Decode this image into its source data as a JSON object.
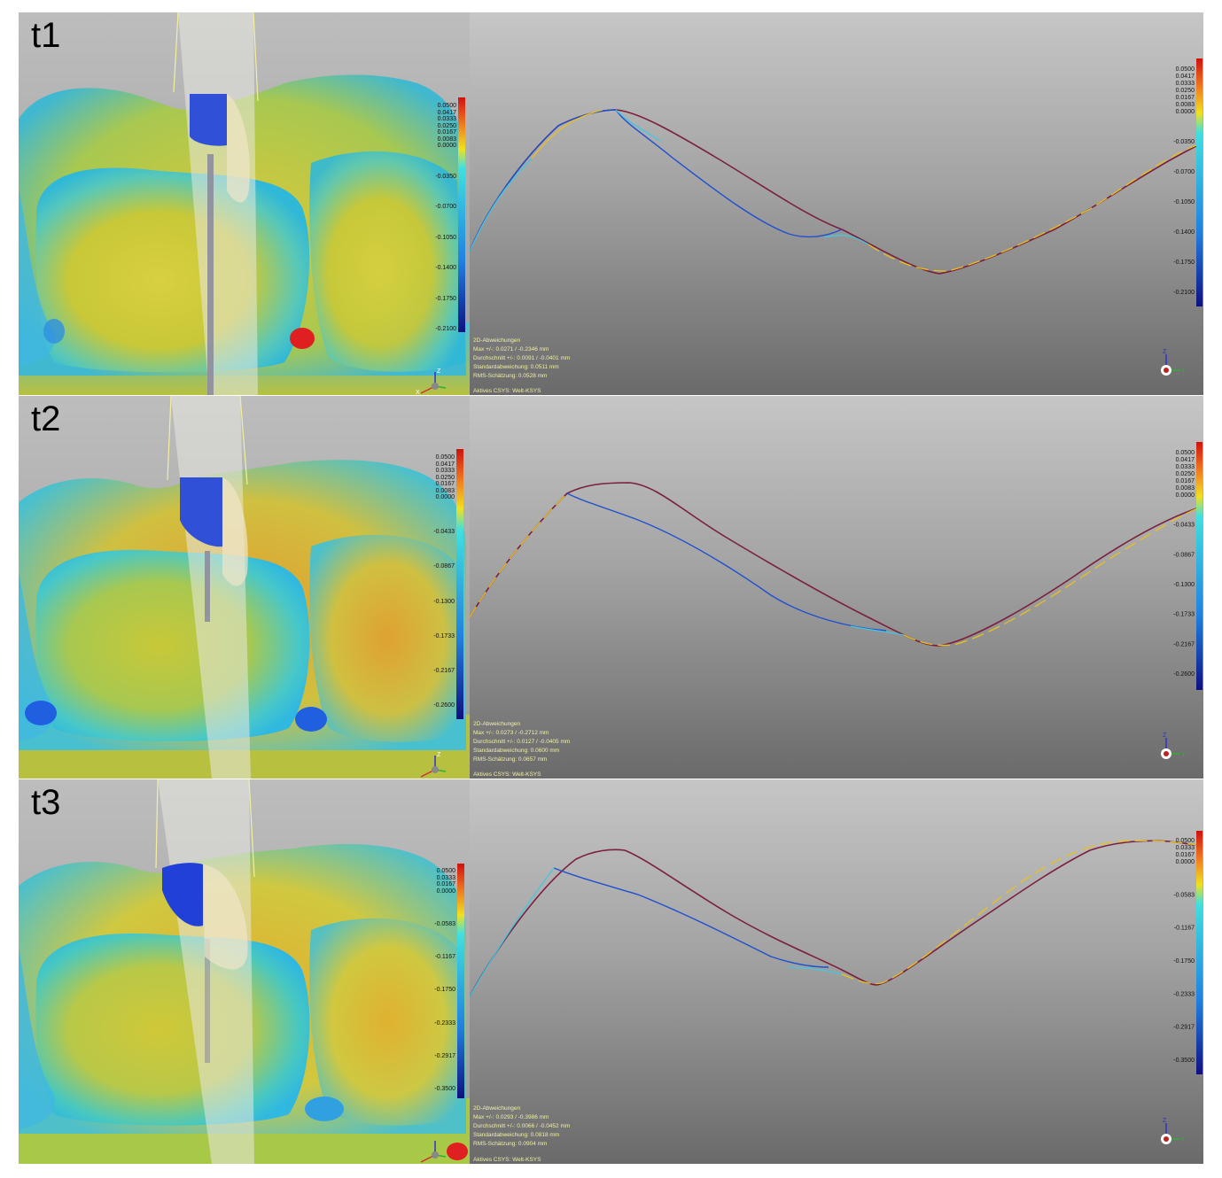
{
  "panels": [
    {
      "id": "t1",
      "label": "t1",
      "scale_left": [
        "0.0500",
        "0.0417",
        "0.0333",
        "0.0250",
        "0.0167",
        "0.0083",
        "0.0000",
        "-0.0350",
        "-0.0700",
        "-0.1050",
        "-0.1400",
        "-0.1750",
        "-0.2100"
      ],
      "scale_right": [
        "0.0500",
        "0.0417",
        "0.0333",
        "0.0250",
        "0.0167",
        "0.0083",
        "0.0000",
        "-0.0350",
        "-0.0700",
        "-0.1050",
        "-0.1400",
        "-0.1750",
        "-0.2100"
      ],
      "info": {
        "title": "2D-Abweichungen",
        "max": "Max +/-: 0.0271 / -0.2346 mm",
        "mean": "Durchschnitt +/-: 0.0091 / -0.0401 mm",
        "std": "Standardabweichung: 0.0511 mm",
        "rms": "RMS-Schätzung: 0.0528 mm"
      },
      "csys": "Aktives CSYS: Welt-KSYS"
    },
    {
      "id": "t2",
      "label": "t2",
      "scale_left": [
        "0.0500",
        "0.0417",
        "0.0333",
        "0.0250",
        "0.0167",
        "0.0083",
        "0.0000",
        "-0.0433",
        "-0.0867",
        "-0.1300",
        "-0.1733",
        "-0.2167",
        "-0.2600"
      ],
      "scale_right": [
        "0.0500",
        "0.0417",
        "0.0333",
        "0.0250",
        "0.0167",
        "0.0083",
        "0.0000",
        "-0.0433",
        "-0.0867",
        "-0.1300",
        "-0.1733",
        "-0.2167",
        "-0.2600"
      ],
      "info": {
        "title": "2D-Abweichungen",
        "max": "Max +/-: 0.0273 / -0.2712 mm",
        "mean": "Durchschnitt +/-: 0.0127 / -0.0405 mm",
        "std": "Standardabweichung: 0.0600 mm",
        "rms": "RMS-Schätzung: 0.0657 mm"
      },
      "csys": "Aktives CSYS: Welt-KSYS"
    },
    {
      "id": "t3",
      "label": "t3",
      "scale_left": [
        "0.0500",
        "0.0333",
        "0.0167",
        "0.0000",
        "-0.0583",
        "-0.1167",
        "-0.1750",
        "-0.2333",
        "-0.2917",
        "-0.3500"
      ],
      "scale_right": [
        "0.0500",
        "0.0333",
        "0.0167",
        "0.0000",
        "-0.0583",
        "-0.1167",
        "-0.1750",
        "-0.2333",
        "-0.2917",
        "-0.3500"
      ],
      "info": {
        "title": "2D-Abweichungen",
        "max": "Max +/-: 0.0293 / -0.3986 mm",
        "mean": "Durchschnitt +/-: 0.0066 / -0.0452 mm",
        "std": "Standardabweichung: 0.0818 mm",
        "rms": "RMS-Schätzung: 0.0904 mm"
      },
      "csys": "Aktives CSYS: Welt-KSYS"
    }
  ],
  "axis_labels": {
    "z": "Z",
    "y": "Y",
    "x": "X"
  },
  "colors": {
    "nominal_curve": "#7a1f3d",
    "deviation_negative": "#1f4fd0",
    "deviation_near_zero": "#40c8e0",
    "deviation_positive": "#e8c020",
    "info_text": "#f0f0a8"
  }
}
